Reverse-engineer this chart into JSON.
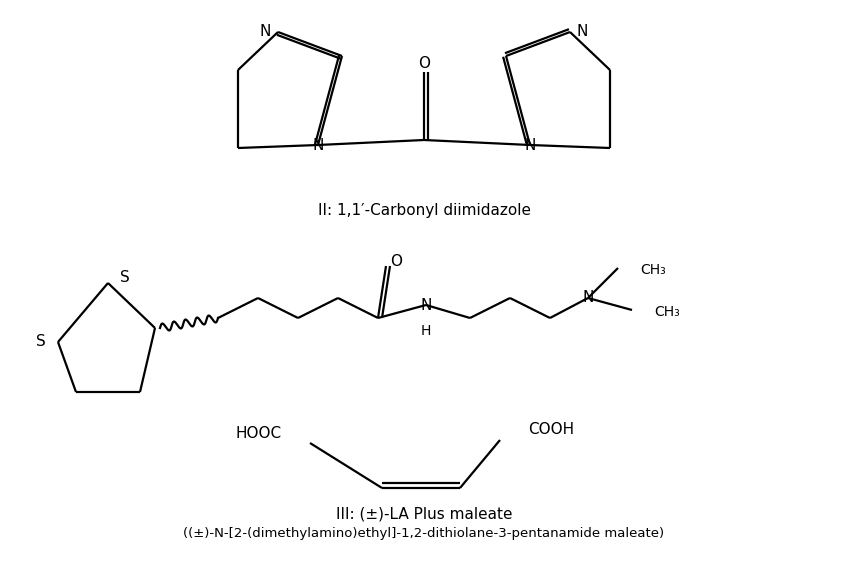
{
  "background_color": "#ffffff",
  "title_II": "II: 1,1′-Carbonyl diimidazole",
  "title_III": "III: (±)-LA Plus maleate",
  "subtitle_III": "((±)-N-[2-(dimethylamino)ethyl]-1,2-dithiolane-3-pentanamide maleate)",
  "fig_width": 8.48,
  "fig_height": 5.64,
  "line_color": "#000000",
  "line_width": 1.6,
  "font_size_label": 11,
  "font_size_sub": 9.5,
  "font_size_atom": 11
}
